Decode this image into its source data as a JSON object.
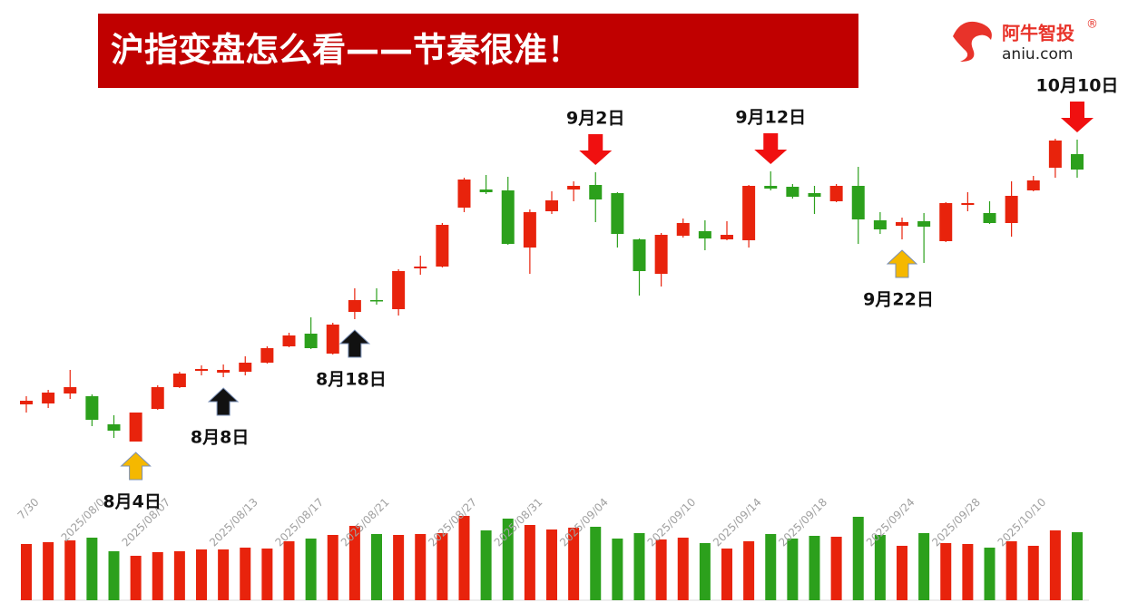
{
  "chart_data": {
    "type": "candlestick",
    "title": "沪指变盘怎么看——节奏很准！",
    "categories": [
      "7/30",
      null,
      null,
      "2025/08/0",
      null,
      null,
      "2025/08/07",
      null,
      null,
      null,
      "2025/08/13",
      null,
      null,
      "2025/08/17",
      null,
      null,
      "2025/08/21",
      null,
      null,
      null,
      "2025/08/27",
      null,
      null,
      "2025/08/31",
      null,
      null,
      "2025/09/04",
      null,
      null,
      null,
      "2025/09/10",
      null,
      null,
      "2025/09/14",
      null,
      null,
      "2025/09/18",
      null,
      null,
      null,
      "2025/09/24",
      null,
      null,
      "2025/09/28",
      null,
      null,
      "2025/10/10",
      null,
      null
    ],
    "open": [
      3554,
      3555,
      3566,
      3563,
      3532,
      3513,
      3549,
      3573,
      3591,
      3589,
      3590,
      3600,
      3618,
      3632,
      3610,
      3656,
      3669,
      3659,
      3704,
      3706,
      3771,
      3791,
      3790,
      3727,
      3767,
      3791,
      3796,
      3787,
      3736,
      3698,
      3740,
      3745,
      3736,
      3735,
      3795,
      3794,
      3787,
      3778,
      3795,
      3757,
      3751,
      3756,
      3734,
      3774,
      3765,
      3754,
      3790,
      3815,
      3830
    ],
    "high": [
      3563,
      3570,
      3592,
      3565,
      3542,
      3545,
      3575,
      3590,
      3597,
      3598,
      3607,
      3618,
      3633,
      3650,
      3644,
      3682,
      3682,
      3703,
      3718,
      3754,
      3804,
      3807,
      3805,
      3769,
      3789,
      3800,
      3810,
      3788,
      3737,
      3743,
      3759,
      3757,
      3756,
      3796,
      3811,
      3797,
      3795,
      3797,
      3816,
      3766,
      3760,
      3765,
      3777,
      3788,
      3778,
      3800,
      3806,
      3847,
      3846
    ],
    "low": [
      3545,
      3550,
      3560,
      3530,
      3517,
      3513,
      3548,
      3572,
      3586,
      3584,
      3586,
      3599,
      3617,
      3615,
      3609,
      3648,
      3664,
      3652,
      3697,
      3705,
      3766,
      3786,
      3730,
      3698,
      3764,
      3778,
      3755,
      3727,
      3674,
      3684,
      3738,
      3724,
      3735,
      3727,
      3790,
      3781,
      3764,
      3777,
      3731,
      3742,
      3736,
      3710,
      3733,
      3767,
      3753,
      3739,
      3789,
      3804,
      3804
    ],
    "close": [
      3558,
      3567,
      3573,
      3537,
      3525,
      3545,
      3573,
      3588,
      3593,
      3592,
      3600,
      3616,
      3630,
      3616,
      3642,
      3669,
      3668,
      3701,
      3706,
      3752,
      3802,
      3788,
      3731,
      3766,
      3779,
      3795,
      3780,
      3742,
      3701,
      3741,
      3754,
      3737,
      3741,
      3795,
      3792,
      3783,
      3783,
      3795,
      3758,
      3747,
      3755,
      3750,
      3776,
      3776,
      3754,
      3784,
      3801,
      3845,
      3813
    ],
    "volume": [
      62,
      64,
      66,
      69,
      54,
      49,
      53,
      54,
      56,
      56,
      58,
      57,
      65,
      68,
      72,
      82,
      73,
      72,
      73,
      74,
      93,
      77,
      90,
      83,
      78,
      80,
      81,
      68,
      74,
      67,
      69,
      63,
      57,
      65,
      73,
      68,
      71,
      70,
      92,
      72,
      60,
      74,
      63,
      62,
      58,
      65,
      60,
      77,
      75
    ],
    "ylim": [
      3470,
      3860
    ],
    "volume_lim": [
      0,
      100
    ],
    "up_color": "#e8230c",
    "down_color": "#2ca01c",
    "annotations": [
      {
        "text": "8月4日",
        "direction": "up",
        "color": "#f5b800"
      },
      {
        "text": "8月8日",
        "direction": "up",
        "color": "#111111"
      },
      {
        "text": "8月18日",
        "direction": "up",
        "color": "#111111"
      },
      {
        "text": "9月2日",
        "direction": "down",
        "color": "#f01010"
      },
      {
        "text": "9月12日",
        "direction": "down",
        "color": "#f01010"
      },
      {
        "text": "9月22日",
        "direction": "up",
        "color": "#f5b800"
      },
      {
        "text": "10月10日",
        "direction": "down",
        "color": "#f01010"
      }
    ]
  },
  "logo": {
    "name": "阿牛智投",
    "mark": "®",
    "domain": "aniu.com"
  }
}
